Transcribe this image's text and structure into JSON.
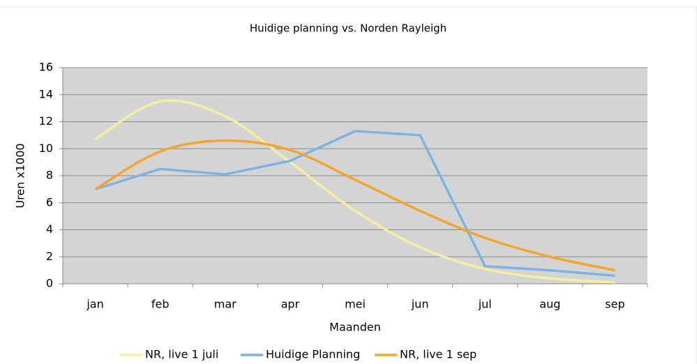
{
  "chart_data": {
    "type": "line",
    "title": "Huidige planning vs. Norden Rayleigh",
    "x_label": "Maanden",
    "y_label": "Uren x1000",
    "categories": [
      "jan",
      "feb",
      "mar",
      "apr",
      "mei",
      "jun",
      "jul",
      "aug",
      "sep"
    ],
    "series": [
      {
        "name": "NR, live 1 juli",
        "color": "#f4efa0",
        "smooth": true,
        "values": [
          10.7,
          13.5,
          12.4,
          9.0,
          5.4,
          2.7,
          1.1,
          0.4,
          0.1
        ]
      },
      {
        "name": "Huidige Planning",
        "color": "#7ab3e6",
        "smooth": false,
        "values": [
          7.0,
          8.5,
          8.1,
          9.1,
          11.3,
          11.0,
          1.3,
          1.0,
          0.6
        ]
      },
      {
        "name": "NR, live 1 sep",
        "color": "#f4a52c",
        "smooth": true,
        "values": [
          7.0,
          9.8,
          10.6,
          9.9,
          7.7,
          5.4,
          3.4,
          2.0,
          1.0
        ]
      }
    ],
    "ylim": [
      0,
      16
    ],
    "yticks": [
      0,
      2,
      4,
      6,
      8,
      10,
      12,
      14,
      16
    ],
    "grid": true,
    "legend": "bottom"
  }
}
